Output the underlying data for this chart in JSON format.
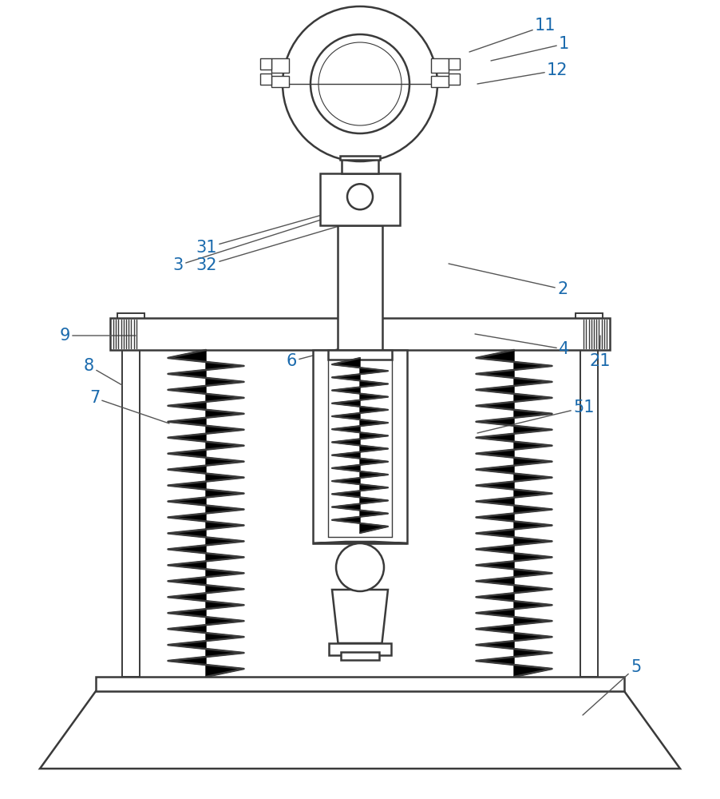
{
  "bg_color": "#ffffff",
  "line_color": "#3a3a3a",
  "label_color": "#1a6aad",
  "fig_width": 9.02,
  "fig_height": 10.0
}
